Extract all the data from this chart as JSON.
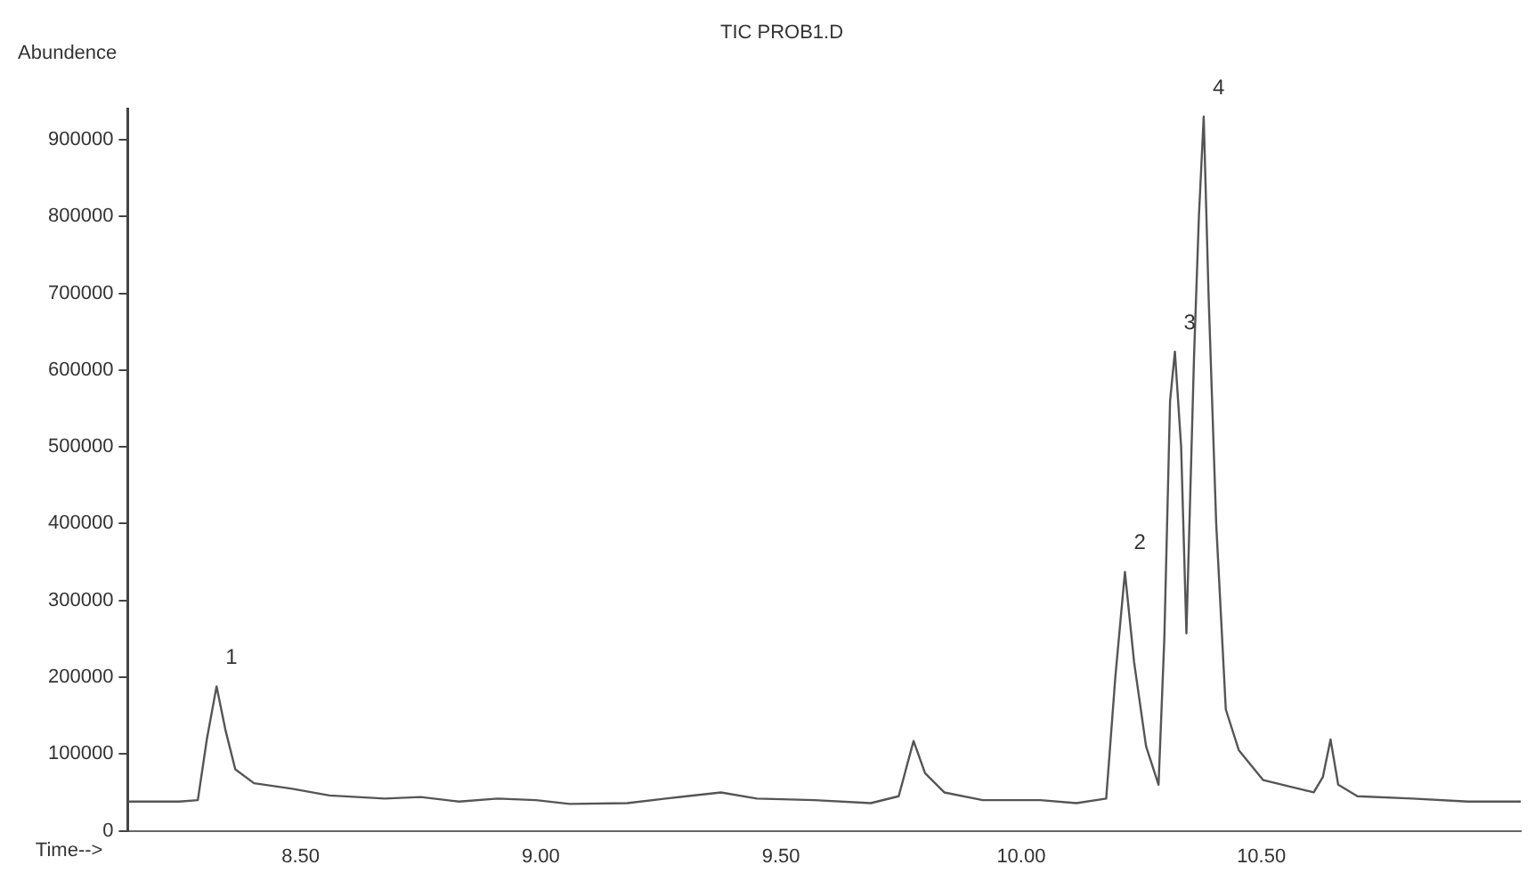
{
  "chart_data": {
    "type": "line",
    "title": "TIC PROB1.D",
    "xlabel": "Time-->",
    "ylabel": "Abundence",
    "x": [
      8.14,
      8.247,
      8.286,
      8.305,
      8.325,
      8.344,
      8.364,
      8.403,
      8.48,
      8.56,
      8.675,
      8.75,
      8.83,
      8.91,
      8.99,
      9.06,
      9.18,
      9.26,
      9.375,
      9.45,
      9.57,
      9.687,
      9.745,
      9.776,
      9.8,
      9.84,
      9.92,
      10.04,
      10.115,
      10.177,
      10.196,
      10.216,
      10.235,
      10.26,
      10.286,
      10.298,
      10.31,
      10.32,
      10.333,
      10.344,
      10.36,
      10.37,
      10.38,
      10.39,
      10.406,
      10.426,
      10.453,
      10.504,
      10.609,
      10.628,
      10.644,
      10.66,
      10.7,
      10.815,
      10.93,
      11.04
    ],
    "series": [
      {
        "color": "#555555",
        "values": [
          38000,
          38000,
          40000,
          120000,
          188000,
          130000,
          80000,
          62000,
          55000,
          46000,
          42000,
          44000,
          38000,
          42000,
          40000,
          35000,
          36000,
          42000,
          50000,
          42000,
          40000,
          36000,
          45000,
          117000,
          75000,
          50000,
          40000,
          40000,
          36000,
          42000,
          200000,
          337000,
          220000,
          110000,
          60000,
          250000,
          560000,
          624000,
          500000,
          257000,
          620000,
          800000,
          930000,
          700000,
          400000,
          158000,
          105000,
          66000,
          50000,
          70000,
          119000,
          60000,
          45000,
          42000,
          38000,
          38000
        ]
      }
    ],
    "xlim": [
      8.14,
      11.04
    ],
    "ylim": [
      0,
      940000
    ],
    "xticks": [
      {
        "value": 8.5,
        "label": "8.50"
      },
      {
        "value": 9,
        "label": "9.00"
      },
      {
        "value": 9.5,
        "label": "9.50"
      },
      {
        "value": 10,
        "label": "10.00"
      },
      {
        "value": 10.5,
        "label": "10.50"
      }
    ],
    "yticks": [
      0,
      100000,
      200000,
      300000,
      400000,
      500000,
      600000,
      700000,
      800000,
      900000
    ],
    "annotations": [
      {
        "text": "1",
        "x": 8.325,
        "y": 188000
      },
      {
        "text": "2",
        "x": 10.216,
        "y": 337000
      },
      {
        "text": "3",
        "x": 10.32,
        "y": 624000
      },
      {
        "text": "4",
        "x": 10.38,
        "y": 930000
      }
    ],
    "grid": false,
    "legend": false,
    "marker": "none",
    "line_style": "solid"
  }
}
